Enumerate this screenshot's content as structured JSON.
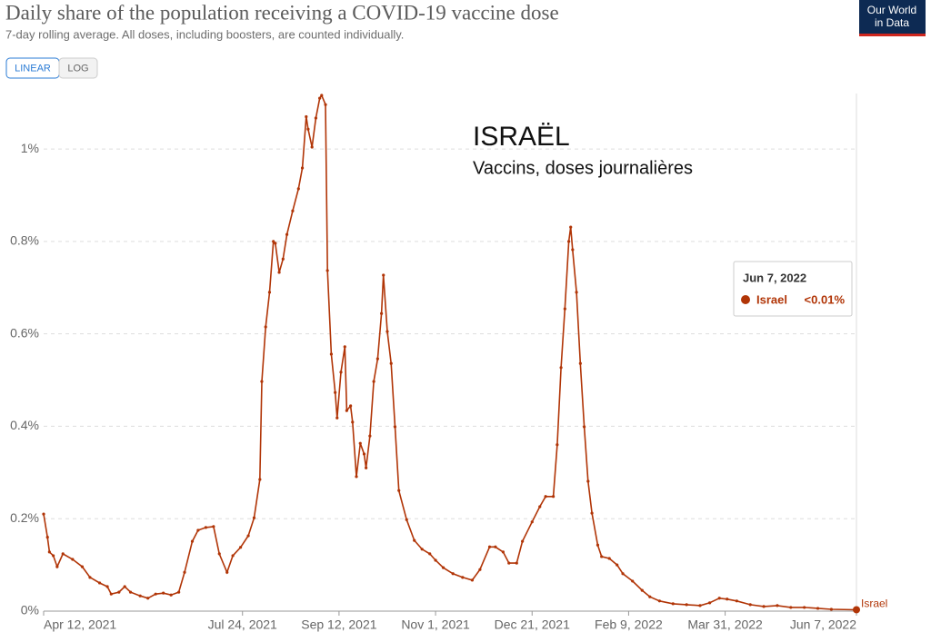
{
  "chart_data": {
    "type": "line",
    "title": "Daily share of the population receiving a COVID-19 vaccine dose",
    "subtitle": "7-day rolling average. All doses, including boosters, are counted individually.",
    "scale_buttons": [
      "LINEAR",
      "LOG"
    ],
    "logo": [
      "Our World",
      "in Data"
    ],
    "annotation": [
      "ISRAËL",
      "Vaccins, doses journalières"
    ],
    "tooltip": {
      "date": "Jun 7, 2022",
      "value_label": "<0.01%"
    },
    "grid": true,
    "log_scale": false,
    "ylim": [
      0,
      1.12
    ],
    "yticks": [
      {
        "value": 0,
        "label": "0%"
      },
      {
        "value": 0.2,
        "label": "0.2%"
      },
      {
        "value": 0.4,
        "label": "0.4%"
      },
      {
        "value": 0.6,
        "label": "0.6%"
      },
      {
        "value": 0.8,
        "label": "0.8%"
      },
      {
        "value": 1,
        "label": "1%"
      }
    ],
    "xlim": [
      "2021-04-12",
      "2022-06-07"
    ],
    "xticks": [
      {
        "value": "2021-04-12",
        "label": "Apr 12, 2021"
      },
      {
        "value": "2021-07-24",
        "label": "Jul 24, 2021"
      },
      {
        "value": "2021-09-12",
        "label": "Sep 12, 2021"
      },
      {
        "value": "2021-11-01",
        "label": "Nov 1, 2021"
      },
      {
        "value": "2021-12-21",
        "label": "Dec 21, 2021"
      },
      {
        "value": "2022-02-09",
        "label": "Feb 9, 2022"
      },
      {
        "value": "2022-03-31",
        "label": "Mar 31, 2022"
      },
      {
        "value": "2022-06-07",
        "label": "Jun 7, 2022"
      }
    ],
    "x": [
      "2021-04-12",
      "2021-04-14",
      "2021-04-15",
      "2021-04-17",
      "2021-04-19",
      "2021-04-22",
      "2021-04-27",
      "2021-05-02",
      "2021-05-06",
      "2021-05-11",
      "2021-05-15",
      "2021-05-17",
      "2021-05-21",
      "2021-05-24",
      "2021-05-27",
      "2021-06-01",
      "2021-06-05",
      "2021-06-09",
      "2021-06-13",
      "2021-06-17",
      "2021-06-21",
      "2021-06-24",
      "2021-06-28",
      "2021-07-01",
      "2021-07-05",
      "2021-07-09",
      "2021-07-12",
      "2021-07-16",
      "2021-07-19",
      "2021-07-23",
      "2021-07-27",
      "2021-07-30",
      "2021-08-02",
      "2021-08-03",
      "2021-08-05",
      "2021-08-07",
      "2021-08-09",
      "2021-08-10",
      "2021-08-12",
      "2021-08-14",
      "2021-08-16",
      "2021-08-19",
      "2021-08-22",
      "2021-08-24",
      "2021-08-26",
      "2021-08-27",
      "2021-08-29",
      "2021-08-31",
      "2021-09-02",
      "2021-09-03",
      "2021-09-05",
      "2021-09-06",
      "2021-09-08",
      "2021-09-10",
      "2021-09-11",
      "2021-09-13",
      "2021-09-15",
      "2021-09-16",
      "2021-09-18",
      "2021-09-19",
      "2021-09-21",
      "2021-09-23",
      "2021-09-25",
      "2021-09-26",
      "2021-09-28",
      "2021-09-30",
      "2021-10-02",
      "2021-10-04",
      "2021-10-05",
      "2021-10-07",
      "2021-10-09",
      "2021-10-11",
      "2021-10-13",
      "2021-10-17",
      "2021-10-21",
      "2021-10-25",
      "2021-10-29",
      "2021-11-01",
      "2021-11-05",
      "2021-11-10",
      "2021-11-15",
      "2021-11-20",
      "2021-11-24",
      "2021-11-29",
      "2021-12-02",
      "2021-12-06",
      "2021-12-09",
      "2021-12-13",
      "2021-12-16",
      "2021-12-21",
      "2021-12-25",
      "2021-12-28",
      "2022-01-01",
      "2022-01-03",
      "2022-01-05",
      "2022-01-07",
      "2022-01-09",
      "2022-01-10",
      "2022-01-11",
      "2022-01-13",
      "2022-01-15",
      "2022-01-17",
      "2022-01-19",
      "2022-01-21",
      "2022-01-24",
      "2022-01-26",
      "2022-01-30",
      "2022-02-03",
      "2022-02-06",
      "2022-02-11",
      "2022-02-16",
      "2022-02-20",
      "2022-02-25",
      "2022-03-04",
      "2022-03-11",
      "2022-03-18",
      "2022-03-23",
      "2022-03-28",
      "2022-04-01",
      "2022-04-06",
      "2022-04-13",
      "2022-04-20",
      "2022-04-27",
      "2022-05-04",
      "2022-05-11",
      "2022-05-18",
      "2022-05-25",
      "2022-06-07"
    ],
    "series": [
      {
        "name": "Israel",
        "color": "#b13507",
        "values": [
          0.21,
          0.16,
          0.128,
          0.12,
          0.096,
          0.124,
          0.112,
          0.096,
          0.073,
          0.061,
          0.053,
          0.037,
          0.041,
          0.053,
          0.041,
          0.033,
          0.028,
          0.037,
          0.039,
          0.035,
          0.041,
          0.084,
          0.151,
          0.175,
          0.181,
          0.183,
          0.124,
          0.084,
          0.12,
          0.138,
          0.163,
          0.202,
          0.285,
          0.497,
          0.615,
          0.69,
          0.8,
          0.796,
          0.733,
          0.762,
          0.815,
          0.866,
          0.914,
          0.959,
          1.07,
          1.043,
          1.004,
          1.067,
          1.11,
          1.116,
          1.096,
          0.737,
          0.556,
          0.473,
          0.418,
          0.517,
          0.572,
          0.434,
          0.444,
          0.409,
          0.291,
          0.363,
          0.34,
          0.31,
          0.379,
          0.497,
          0.546,
          0.644,
          0.727,
          0.605,
          0.536,
          0.399,
          0.261,
          0.198,
          0.153,
          0.134,
          0.124,
          0.11,
          0.094,
          0.081,
          0.073,
          0.067,
          0.09,
          0.139,
          0.139,
          0.128,
          0.104,
          0.104,
          0.151,
          0.193,
          0.226,
          0.248,
          0.248,
          0.36,
          0.527,
          0.654,
          0.8,
          0.831,
          0.782,
          0.69,
          0.536,
          0.399,
          0.281,
          0.212,
          0.143,
          0.118,
          0.114,
          0.1,
          0.081,
          0.065,
          0.045,
          0.031,
          0.022,
          0.016,
          0.014,
          0.012,
          0.018,
          0.028,
          0.026,
          0.022,
          0.014,
          0.01,
          0.012,
          0.008,
          0.008,
          0.006,
          0.004,
          0.003
        ]
      }
    ]
  }
}
